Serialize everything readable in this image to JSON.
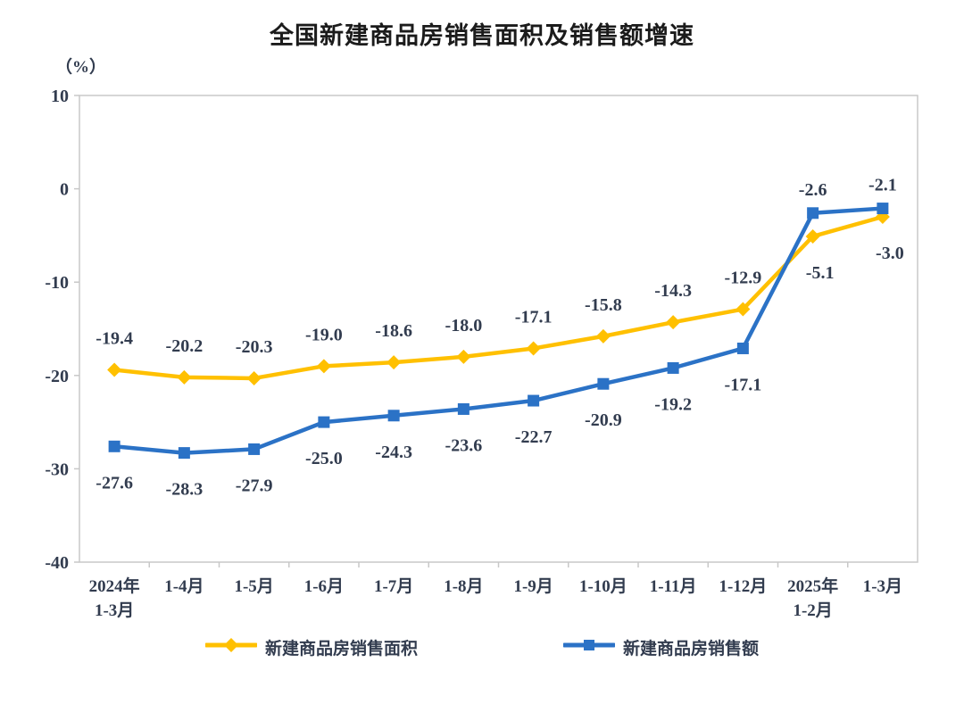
{
  "title": "全国新建商品房销售面积及销售额增速",
  "axis_unit_label": "（%）",
  "chart_data": {
    "type": "line",
    "title": "全国新建商品房销售面积及销售额增速",
    "ylabel": "（%）",
    "ylim": [
      -40,
      10
    ],
    "y_ticks": [
      "10",
      "0",
      "-10",
      "-20",
      "-30",
      "-40"
    ],
    "grid": false,
    "legend_position": "bottom",
    "categories": [
      [
        "2024年",
        "1-3月"
      ],
      [
        "1-4月"
      ],
      [
        "1-5月"
      ],
      [
        "1-6月"
      ],
      [
        "1-7月"
      ],
      [
        "1-8月"
      ],
      [
        "1-9月"
      ],
      [
        "1-10月"
      ],
      [
        "1-11月"
      ],
      [
        "1-12月"
      ],
      [
        "2025年",
        "1-2月"
      ],
      [
        "1-3月"
      ]
    ],
    "series": [
      {
        "name": "新建商品房销售面积",
        "color": "#FFC000",
        "marker": "diamond",
        "values": [
          -19.4,
          -20.2,
          -20.3,
          -19.0,
          -18.6,
          -18.0,
          -17.1,
          -15.8,
          -14.3,
          -12.9,
          -5.1,
          -3.0
        ],
        "labels": [
          "-19.4",
          "-20.2",
          "-20.3",
          "-19.0",
          "-18.6",
          "-18.0",
          "-17.1",
          "-15.8",
          "-14.3",
          "-12.9",
          "-5.1",
          "-3.0"
        ],
        "label_sides": [
          "above",
          "above",
          "above",
          "above",
          "above",
          "above",
          "above",
          "above",
          "above",
          "above",
          "below",
          "below"
        ]
      },
      {
        "name": "新建商品房销售额",
        "color": "#2B72C6",
        "marker": "square",
        "values": [
          -27.6,
          -28.3,
          -27.9,
          -25.0,
          -24.3,
          -23.6,
          -22.7,
          -20.9,
          -19.2,
          -17.1,
          -2.6,
          -2.1
        ],
        "labels": [
          "-27.6",
          "-28.3",
          "-27.9",
          "-25.0",
          "-24.3",
          "-23.6",
          "-22.7",
          "-20.9",
          "-19.2",
          "-17.1",
          "-2.6",
          "-2.1"
        ],
        "label_sides": [
          "below",
          "below",
          "below",
          "below",
          "below",
          "below",
          "below",
          "below",
          "below",
          "below",
          "above",
          "above"
        ]
      }
    ]
  },
  "style": {
    "text_color": "#323c4f",
    "border_color": "#c8c8c8",
    "background": "#ffffff"
  }
}
